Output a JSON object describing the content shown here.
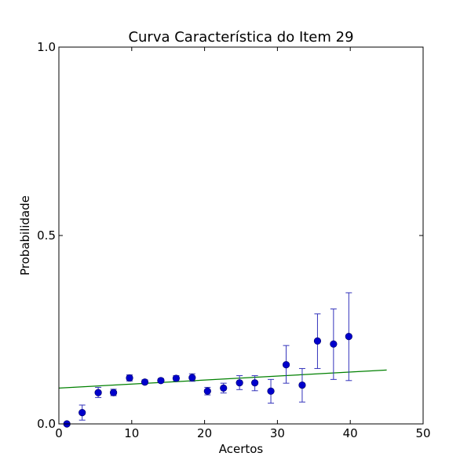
{
  "chart_data": {
    "type": "scatter",
    "title": "Curva Característica do Item 29",
    "xlabel": "Acertos",
    "ylabel": "Probabilidade",
    "xlim": [
      0,
      50
    ],
    "ylim": [
      0,
      1.0
    ],
    "x_ticks": [
      0,
      10,
      20,
      30,
      40,
      50
    ],
    "x_tick_labels": [
      "0",
      "10",
      "20",
      "30",
      "40",
      "50"
    ],
    "y_ticks": [
      0.0,
      0.5,
      1.0
    ],
    "y_tick_labels": [
      "0.0",
      "0.5",
      "1.0"
    ],
    "grid": false,
    "marker_color": "#0000cc",
    "errorbar_color": "#3333bb",
    "fit_line_color": "#008000",
    "points": [
      {
        "x": 1.1,
        "y": 0.0,
        "low": 0.0,
        "high": 0.0
      },
      {
        "x": 3.2,
        "y": 0.03,
        "low": 0.01,
        "high": 0.05
      },
      {
        "x": 5.4,
        "y": 0.083,
        "low": 0.07,
        "high": 0.097
      },
      {
        "x": 7.5,
        "y": 0.083,
        "low": 0.075,
        "high": 0.092
      },
      {
        "x": 9.7,
        "y": 0.122,
        "low": 0.114,
        "high": 0.13
      },
      {
        "x": 11.8,
        "y": 0.111,
        "low": 0.106,
        "high": 0.117
      },
      {
        "x": 14.0,
        "y": 0.115,
        "low": 0.11,
        "high": 0.12
      },
      {
        "x": 16.1,
        "y": 0.121,
        "low": 0.114,
        "high": 0.128
      },
      {
        "x": 18.3,
        "y": 0.123,
        "low": 0.113,
        "high": 0.133
      },
      {
        "x": 20.4,
        "y": 0.087,
        "low": 0.077,
        "high": 0.097
      },
      {
        "x": 22.6,
        "y": 0.095,
        "low": 0.082,
        "high": 0.108
      },
      {
        "x": 24.8,
        "y": 0.109,
        "low": 0.091,
        "high": 0.128
      },
      {
        "x": 26.9,
        "y": 0.109,
        "low": 0.088,
        "high": 0.128
      },
      {
        "x": 29.1,
        "y": 0.087,
        "low": 0.055,
        "high": 0.118
      },
      {
        "x": 31.2,
        "y": 0.157,
        "low": 0.108,
        "high": 0.208
      },
      {
        "x": 33.4,
        "y": 0.103,
        "low": 0.058,
        "high": 0.147
      },
      {
        "x": 35.5,
        "y": 0.22,
        "low": 0.147,
        "high": 0.292
      },
      {
        "x": 37.7,
        "y": 0.212,
        "low": 0.118,
        "high": 0.305
      },
      {
        "x": 39.8,
        "y": 0.232,
        "low": 0.115,
        "high": 0.348
      }
    ],
    "fit_line": {
      "x": [
        0,
        45
      ],
      "y": [
        0.095,
        0.143
      ]
    }
  }
}
